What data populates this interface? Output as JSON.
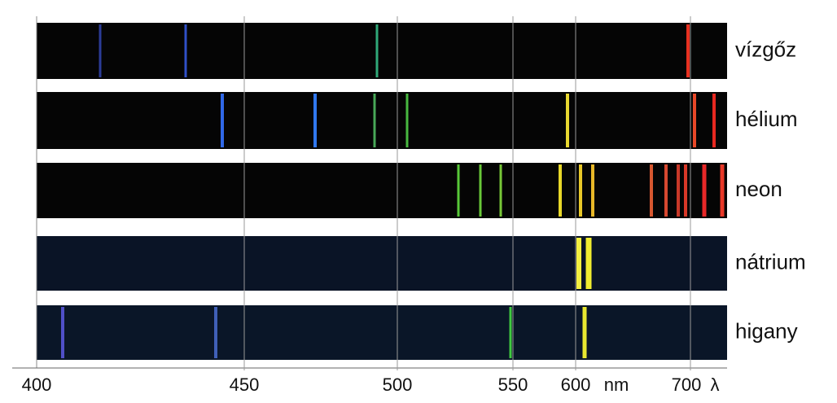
{
  "spectra": [
    {
      "label": "vízgőz"
    },
    {
      "label": "hélium"
    },
    {
      "label": "neon"
    },
    {
      "label": "nátrium"
    },
    {
      "label": "higany"
    }
  ],
  "axis": {
    "labels": [
      "400",
      "450",
      "500",
      "550",
      "600",
      "nm",
      "700",
      "λ"
    ]
  }
}
